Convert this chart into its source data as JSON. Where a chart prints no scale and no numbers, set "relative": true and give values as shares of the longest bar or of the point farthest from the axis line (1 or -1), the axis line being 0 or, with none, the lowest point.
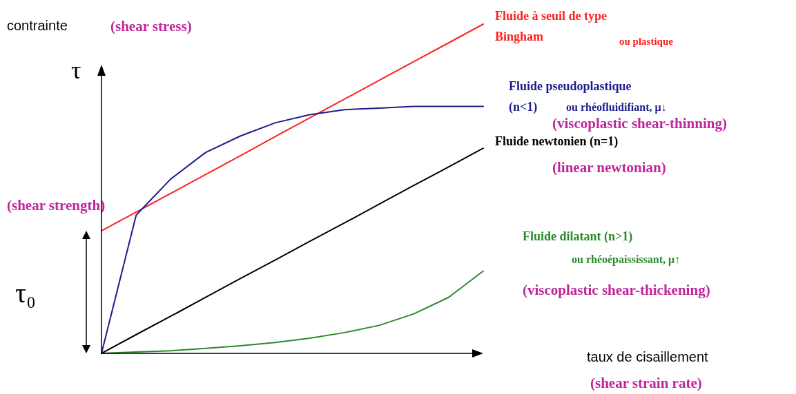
{
  "chart_data": {
    "type": "line",
    "relative": true,
    "ylabel": "contrainte",
    "categories": [
      null,
      null,
      null,
      null,
      null,
      null,
      null,
      null,
      null,
      null,
      null,
      null
    ],
    "series": [
      {
        "name": "Fluide à seuil de type Bingham",
        "color": "#ff2020",
        "values": [
          0.372,
          0.429,
          0.486,
          0.543,
          0.6,
          0.658,
          0.715,
          0.772,
          0.829,
          0.886,
          0.943,
          1.0
        ]
      },
      {
        "name": "Fluide pseudoplastique (n<1)",
        "color": "#1c1c8c",
        "values": [
          0,
          0.42,
          0.53,
          0.61,
          0.66,
          0.7,
          0.725,
          0.74,
          0.745,
          0.75,
          0.75,
          0.75
        ]
      },
      {
        "name": "Fluide newtonien (n=1)",
        "color": "#000000",
        "values": [
          0,
          0.057,
          0.113,
          0.17,
          0.227,
          0.283,
          0.34,
          0.396,
          0.453,
          0.51,
          0.566,
          0.623
        ]
      },
      {
        "name": "Fluide dilatant (n>1)",
        "color": "#2a8a2a",
        "values": [
          0,
          0.004,
          0.008,
          0.015,
          0.023,
          0.033,
          0.046,
          0.063,
          0.085,
          0.12,
          0.17,
          0.25
        ]
      }
    ],
    "annotations": [
      "(shear stress)",
      "ou plastique",
      "ou rhéofluidifiant, μ↓",
      "(viscoplastic shear-thinning)",
      "(linear newtonian)",
      "(shear strength)",
      "ou rhéoépaississant, μ↑",
      "(viscoplastic shear-thickening)",
      "τ₀",
      "τ",
      "(shear strain rate)",
      "taux de cisaillement"
    ],
    "legend": false,
    "grid": false,
    "marker": "none",
    "line_style": "solid"
  }
}
